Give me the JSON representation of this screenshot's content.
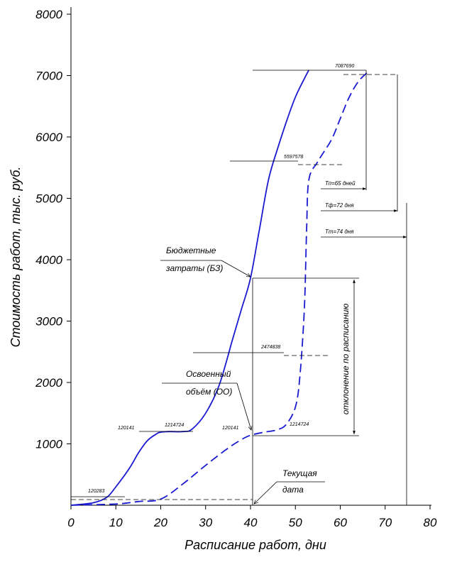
{
  "chart_data": {
    "type": "line",
    "xlabel": "Расписание работ, дни",
    "ylabel": "Стоимость работ, тыс. руб.",
    "xlim": [
      0,
      80
    ],
    "ylim": [
      0,
      8000
    ],
    "x_ticks": [
      "0",
      "10",
      "20",
      "30",
      "40",
      "50",
      "60",
      "70",
      "80"
    ],
    "y_ticks": [
      "1000",
      "2000",
      "3000",
      "4000",
      "5000",
      "6000",
      "7000",
      "8000"
    ],
    "series": [
      {
        "style": "solid",
        "x": [
          0,
          5,
          8,
          10,
          13,
          15,
          17,
          19,
          20,
          22,
          25,
          27,
          30,
          33,
          36,
          38,
          40,
          42,
          44,
          46,
          48,
          50,
          52,
          53
        ],
        "y": [
          0,
          40,
          130,
          300,
          600,
          850,
          1050,
          1160,
          1190,
          1200,
          1200,
          1240,
          1500,
          1950,
          2700,
          3200,
          3700,
          4500,
          5300,
          5800,
          6250,
          6650,
          6950,
          7090
        ]
      },
      {
        "style": "dashed",
        "x": [
          0,
          10,
          15,
          20,
          25,
          30,
          35,
          38,
          40,
          43,
          46,
          48,
          50,
          51,
          52,
          52.5,
          53,
          55,
          58,
          60,
          62,
          64,
          66
        ],
        "y": [
          0,
          20,
          60,
          100,
          350,
          650,
          930,
          1070,
          1140,
          1190,
          1230,
          1320,
          1600,
          2100,
          3200,
          4500,
          5300,
          5600,
          5950,
          6300,
          6650,
          6900,
          7050
        ]
      }
    ],
    "value_labels": [
      {
        "text": "7087690",
        "x": 57.5,
        "y": 7150
      },
      {
        "text": "5597578",
        "x": 46.5,
        "y": 5600
      },
      {
        "text": "2474838",
        "x": 43.5,
        "y": 2600
      },
      {
        "text": "1214724",
        "x": 21.5,
        "y": 1280
      },
      {
        "text": "120141",
        "x": 13.5,
        "y": 1230
      },
      {
        "text": "1214724",
        "x": 48.5,
        "y": 1310
      },
      {
        "text": "120141",
        "x": 38,
        "y": 1230
      },
      {
        "text": "120283",
        "x": 5,
        "y": 200
      }
    ],
    "annotations": [
      {
        "lines": [
          "Бюджетные",
          "затраты (БЗ)"
        ]
      },
      {
        "lines": [
          "Освоенный",
          "объём (ОО)"
        ]
      },
      {
        "lines": [
          "Текущая",
          "дата"
        ]
      },
      {
        "text": "отклонение по расписанию"
      },
      {
        "text": "Тп=65 дней"
      },
      {
        "text": "Тф=72 дня"
      },
      {
        "text": "Тт=74 дня"
      }
    ],
    "current_date_x": 40,
    "grid": false
  }
}
